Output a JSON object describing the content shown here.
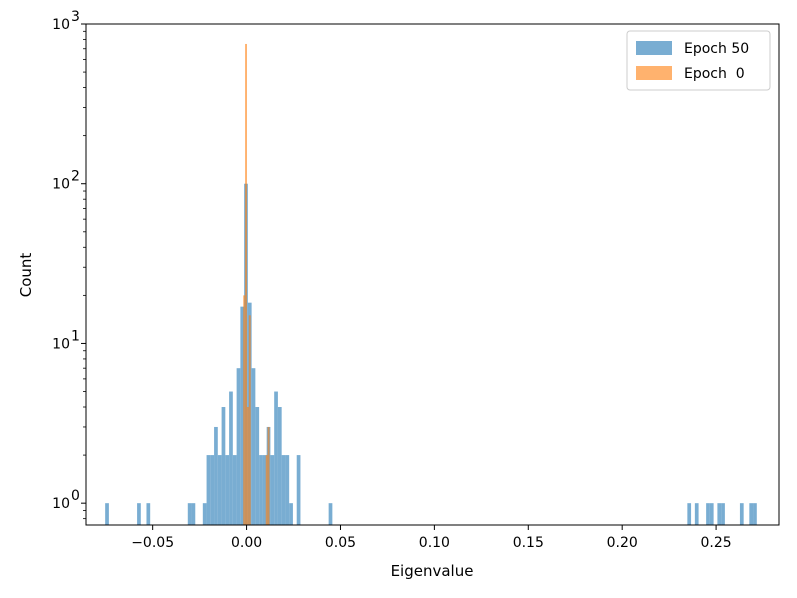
{
  "chart_data": {
    "type": "histogram",
    "xlabel": "Eigenvalue",
    "ylabel": "Count",
    "yscale": "log",
    "xlim": [
      -0.0855,
      0.2835
    ],
    "ylim": [
      0.73,
      1000
    ],
    "x_ticks": [
      {
        "value": -0.05,
        "label": "−0.05"
      },
      {
        "value": 0.0,
        "label": "0.00"
      },
      {
        "value": 0.05,
        "label": "0.05"
      },
      {
        "value": 0.1,
        "label": "0.10"
      },
      {
        "value": 0.15,
        "label": "0.15"
      },
      {
        "value": 0.2,
        "label": "0.20"
      },
      {
        "value": 0.25,
        "label": "0.25"
      }
    ],
    "y_ticks": [
      {
        "value": 1,
        "base": "10",
        "exp": "0"
      },
      {
        "value": 10,
        "base": "10",
        "exp": "1"
      },
      {
        "value": 100,
        "base": "10",
        "exp": "2"
      },
      {
        "value": 1000,
        "base": "10",
        "exp": "3"
      }
    ],
    "legend_position": "top-right",
    "series": [
      {
        "name": "Epoch 50",
        "color": "#1f77b4",
        "opacity": 0.6,
        "bin_width": 0.00198,
        "bins": [
          [
            -0.0753,
            1
          ],
          [
            -0.0583,
            1
          ],
          [
            -0.0533,
            1
          ],
          [
            -0.0313,
            1
          ],
          [
            -0.0293,
            1
          ],
          [
            -0.0233,
            1
          ],
          [
            -0.0213,
            2
          ],
          [
            -0.0193,
            2
          ],
          [
            -0.0173,
            3
          ],
          [
            -0.0153,
            2
          ],
          [
            -0.0133,
            4
          ],
          [
            -0.0113,
            2
          ],
          [
            -0.0093,
            5
          ],
          [
            -0.0073,
            2
          ],
          [
            -0.0053,
            7
          ],
          [
            -0.0033,
            17
          ],
          [
            -0.0013,
            100
          ],
          [
            0.0007,
            18
          ],
          [
            0.0027,
            7
          ],
          [
            0.0047,
            4
          ],
          [
            0.0067,
            2
          ],
          [
            0.0087,
            2
          ],
          [
            0.0107,
            3
          ],
          [
            0.0127,
            2
          ],
          [
            0.0147,
            5
          ],
          [
            0.0167,
            4
          ],
          [
            0.0187,
            2
          ],
          [
            0.0207,
            2
          ],
          [
            0.0227,
            1
          ],
          [
            0.0267,
            2
          ],
          [
            0.0437,
            1
          ],
          [
            0.2347,
            1
          ],
          [
            0.2387,
            1
          ],
          [
            0.2447,
            1
          ],
          [
            0.2467,
            1
          ],
          [
            0.2507,
            1
          ],
          [
            0.2527,
            1
          ],
          [
            0.2627,
            1
          ],
          [
            0.2677,
            1
          ],
          [
            0.2697,
            1
          ]
        ]
      },
      {
        "name": "Epoch  0",
        "color": "#ff7f0e",
        "opacity": 0.6,
        "bin_width": 0.00102,
        "bins": [
          [
            -0.0018,
            20
          ],
          [
            -0.0008,
            750
          ],
          [
            0.0002,
            4
          ],
          [
            0.0012,
            15
          ],
          [
            0.0102,
            2
          ],
          [
            0.0112,
            3
          ]
        ]
      }
    ]
  }
}
